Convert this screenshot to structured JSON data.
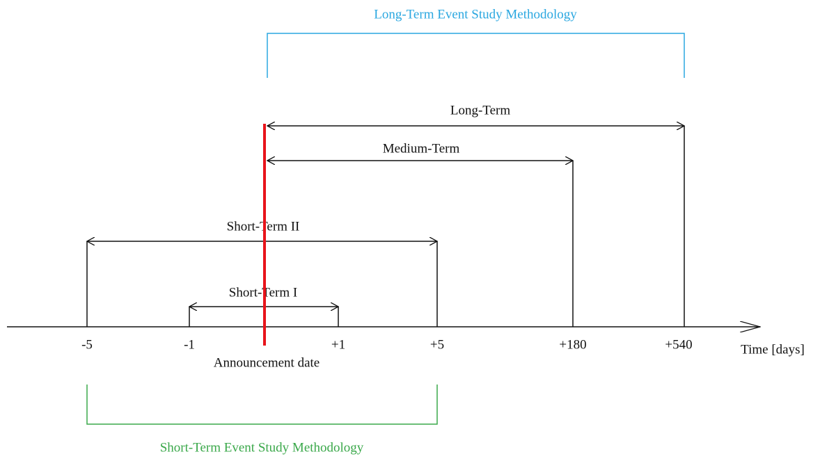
{
  "top_bracket": {
    "title": "Long-Term Event Study Methodology"
  },
  "bottom_bracket": {
    "title": "Short-Term Event Study Methodology"
  },
  "windows": [
    {
      "label": "Long-Term"
    },
    {
      "label": "Medium-Term"
    },
    {
      "label": "Short-Term II"
    },
    {
      "label": "Short-Term I"
    }
  ],
  "axis": {
    "label": "Time [days]",
    "event_label": "Announcement date",
    "ticks": [
      "-5",
      "-1",
      "+1",
      "+5",
      "+180",
      "+540"
    ]
  }
}
